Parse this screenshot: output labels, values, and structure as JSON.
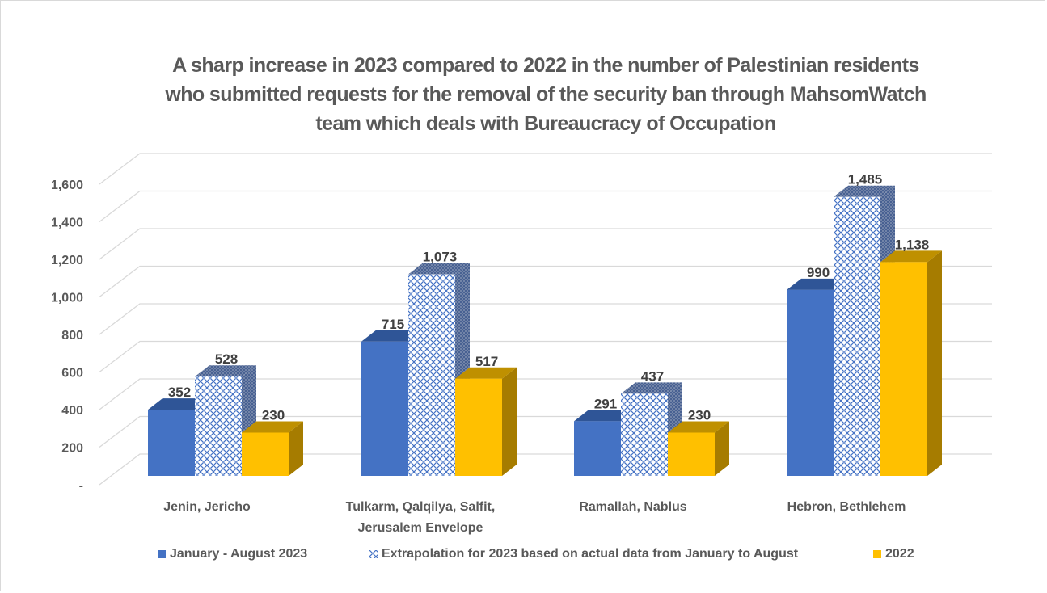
{
  "chart_data": {
    "type": "bar",
    "subtype": "3d-clustered-column",
    "title": "A sharp increase in 2023 compared to 2022 in the number of Palestinian residents who submitted requests for the removal of the security ban through MahsomWatch team which deals with Bureaucracy of Occupation",
    "title_lines": [
      "A sharp increase in 2023 compared to 2022 in the number of Palestinian residents",
      "who submitted requests for the removal of the security ban through MahsomWatch",
      "team which deals with Bureaucracy of Occupation"
    ],
    "categories": [
      [
        "Jenin, Jericho"
      ],
      [
        "Tulkarm, Qalqilya, Salfit,",
        "Jerusalem Envelope"
      ],
      [
        "Ramallah, Nablus"
      ],
      [
        "Hebron, Bethlehem"
      ]
    ],
    "series": [
      {
        "name": "January - August 2023",
        "values": [
          352,
          715,
          291,
          990
        ],
        "labels": [
          "352",
          "715",
          "291",
          "990"
        ],
        "color": "#4472C4",
        "pattern": "solid"
      },
      {
        "name": "Extrapolation for 2023 based on actual data from January to August",
        "values": [
          528,
          1073,
          437,
          1485
        ],
        "labels": [
          "528",
          "1,073",
          "437",
          "1,485"
        ],
        "color": "#4472C4",
        "pattern": "lattice"
      },
      {
        "name": "2022",
        "values": [
          230,
          517,
          230,
          1138
        ],
        "labels": [
          "230",
          "517",
          "230",
          "1,138"
        ],
        "color": "#FFC000",
        "pattern": "solid"
      }
    ],
    "yaxis": {
      "ticks": [
        0,
        200,
        400,
        600,
        800,
        1000,
        1200,
        1400,
        1600
      ],
      "tick_labels": [
        "-",
        "200",
        "400",
        "600",
        "800",
        "1,000",
        "1,200",
        "1,400",
        "1,600"
      ],
      "range": [
        0,
        1600
      ]
    },
    "xlabel": "",
    "ylabel": "",
    "grid": true,
    "legend_position": "bottom"
  }
}
